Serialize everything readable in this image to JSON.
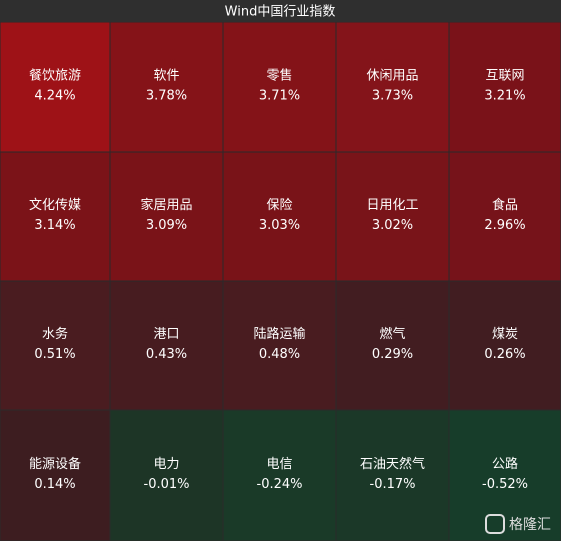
{
  "chart_data": {
    "type": "heatmap",
    "title": "Wind中国行业指数",
    "categories": [
      "餐饮旅游",
      "软件",
      "零售",
      "休闲用品",
      "互联网",
      "文化传媒",
      "家居用品",
      "保险",
      "日用化工",
      "食品",
      "水务",
      "港口",
      "陆路运输",
      "燃气",
      "煤炭",
      "能源设备",
      "电力",
      "电信",
      "石油天然气",
      "公路"
    ],
    "values": [
      4.24,
      3.78,
      3.71,
      3.73,
      3.21,
      3.14,
      3.09,
      3.03,
      3.02,
      2.96,
      0.51,
      0.43,
      0.48,
      0.29,
      0.26,
      0.14,
      -0.01,
      -0.24,
      -0.17,
      -0.52
    ],
    "value_labels": [
      "4.24%",
      "3.78%",
      "3.71%",
      "3.73%",
      "3.21%",
      "3.14%",
      "3.09%",
      "3.03%",
      "3.02%",
      "2.96%",
      "0.51%",
      "0.43%",
      "0.48%",
      "0.29%",
      "0.26%",
      "0.14%",
      "-0.01%",
      "-0.24%",
      "-0.17%",
      "-0.52%"
    ],
    "colors": [
      "#9e1217",
      "#851318",
      "#841318",
      "#84141a",
      "#7a1219",
      "#7b1318",
      "#7a1318",
      "#791318",
      "#791419",
      "#76131a",
      "#4a1c20",
      "#471c20",
      "#491c20",
      "#421d21",
      "#411d21",
      "#3d1d20",
      "#1d3526",
      "#1a3a28",
      "#1b3828",
      "#173d2a"
    ],
    "watermark": "格隆汇"
  }
}
